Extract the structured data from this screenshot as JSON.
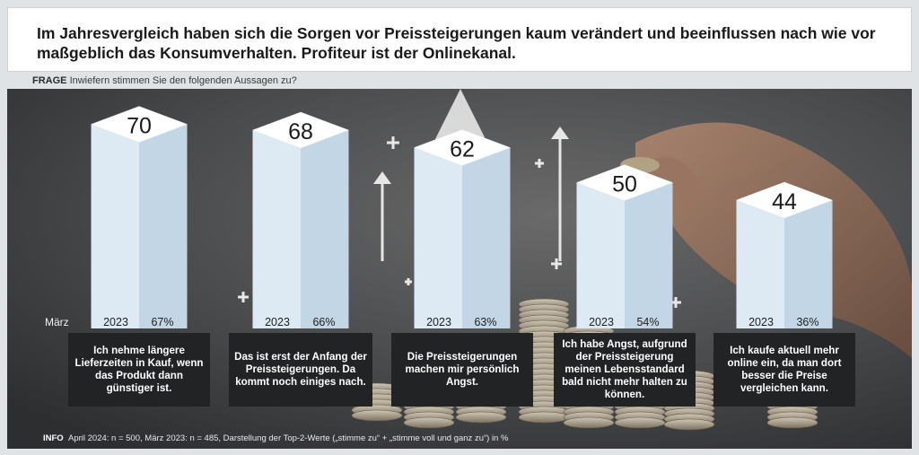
{
  "headline": "Im Jahresvergleich haben sich die Sorgen vor Preissteigerungen kaum verändert und beeinflussen nach wie vor maßgeblich das Konsumverhalten. Profiteur ist der Onlinekanal.",
  "question": {
    "label": "FRAGE",
    "text": "Inwiefern stimmen Sie den folgenden Aussagen zu?"
  },
  "info": {
    "label": "INFO",
    "text": "April 2024: n = 500, März 2023: n = 485, Darstellung der Top-2-Werte („stimme zu“ + „stimme voll und ganz zu“) in %"
  },
  "colors": {
    "bar_front": "#dde9f3",
    "bar_side": "#c3d6e6",
    "bar_top": "#ffffff",
    "caption_bg": "#222324"
  },
  "chart_data": {
    "type": "bar",
    "categories": [
      "Ich nehme längere Lieferzeiten in Kauf, wenn das Produkt dann günstiger ist.",
      "Das ist erst der Anfang der Preissteigerungen. Da kommt noch einiges nach.",
      "Die Preissteigerungen machen mir persönlich Angst.",
      "Ich habe Angst, aufgrund der Preissteigerung meinen Lebensstandard bald nicht mehr halten zu können.",
      "Ich kaufe aktuell mehr online ein, da man dort besser die Preise vergleichen kann."
    ],
    "series": [
      {
        "values": [
          70,
          68,
          62,
          50,
          44
        ]
      },
      {
        "name": "März 2023",
        "values": [
          67,
          66,
          63,
          54,
          36
        ]
      }
    ],
    "comparison_label": "März",
    "comparison_year": "2023",
    "value_suffix": "%"
  }
}
